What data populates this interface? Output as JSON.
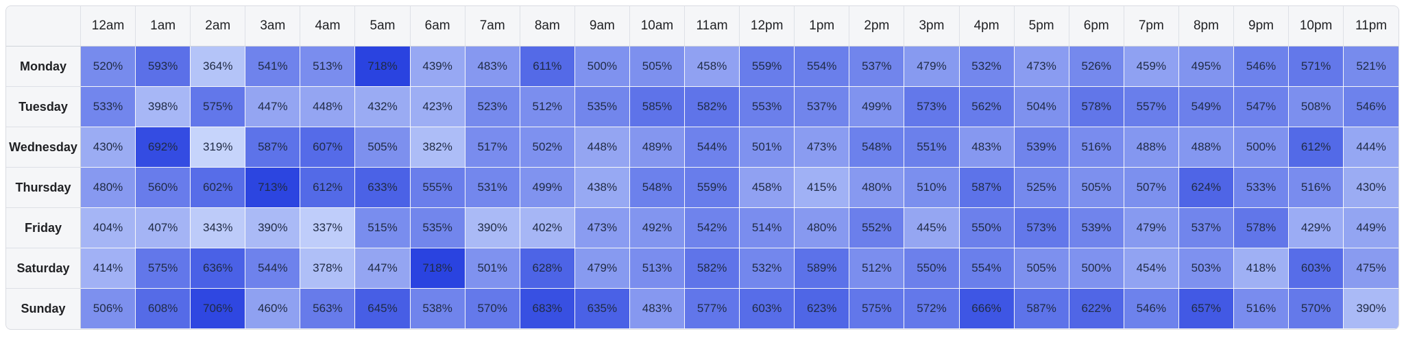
{
  "chart_data": {
    "type": "heatmap",
    "title": "",
    "xlabel": "",
    "ylabel": "",
    "x": [
      "12am",
      "1am",
      "2am",
      "3am",
      "4am",
      "5am",
      "6am",
      "7am",
      "8am",
      "9am",
      "10am",
      "11am",
      "12pm",
      "1pm",
      "2pm",
      "3pm",
      "4pm",
      "5pm",
      "6pm",
      "7pm",
      "8pm",
      "9pm",
      "10pm",
      "11pm"
    ],
    "y": [
      "Monday",
      "Tuesday",
      "Wednesday",
      "Thursday",
      "Friday",
      "Saturday",
      "Sunday"
    ],
    "value_suffix": "%",
    "color_low": "#c6d4fb",
    "color_high": "#2a43e0",
    "values": [
      [
        520,
        593,
        364,
        541,
        513,
        718,
        439,
        483,
        611,
        500,
        505,
        458,
        559,
        554,
        537,
        479,
        532,
        473,
        526,
        459,
        495,
        546,
        571,
        521
      ],
      [
        533,
        398,
        575,
        447,
        448,
        432,
        423,
        523,
        512,
        535,
        585,
        582,
        553,
        537,
        499,
        573,
        562,
        504,
        578,
        557,
        549,
        547,
        508,
        546
      ],
      [
        430,
        692,
        319,
        587,
        607,
        505,
        382,
        517,
        502,
        448,
        489,
        544,
        501,
        473,
        548,
        551,
        483,
        539,
        516,
        488,
        488,
        500,
        612,
        444
      ],
      [
        480,
        560,
        602,
        713,
        612,
        633,
        555,
        531,
        499,
        438,
        548,
        559,
        458,
        415,
        480,
        510,
        587,
        525,
        505,
        507,
        624,
        533,
        516,
        430
      ],
      [
        404,
        407,
        343,
        390,
        337,
        515,
        535,
        390,
        402,
        473,
        492,
        542,
        514,
        480,
        552,
        445,
        550,
        573,
        539,
        479,
        537,
        578,
        429,
        449
      ],
      [
        414,
        575,
        636,
        544,
        378,
        447,
        718,
        501,
        628,
        479,
        513,
        582,
        532,
        589,
        512,
        550,
        554,
        505,
        500,
        454,
        503,
        418,
        603,
        475
      ],
      [
        506,
        608,
        706,
        460,
        563,
        645,
        538,
        570,
        683,
        635,
        483,
        577,
        603,
        623,
        575,
        572,
        666,
        587,
        622,
        546,
        657,
        516,
        570,
        390
      ]
    ]
  }
}
